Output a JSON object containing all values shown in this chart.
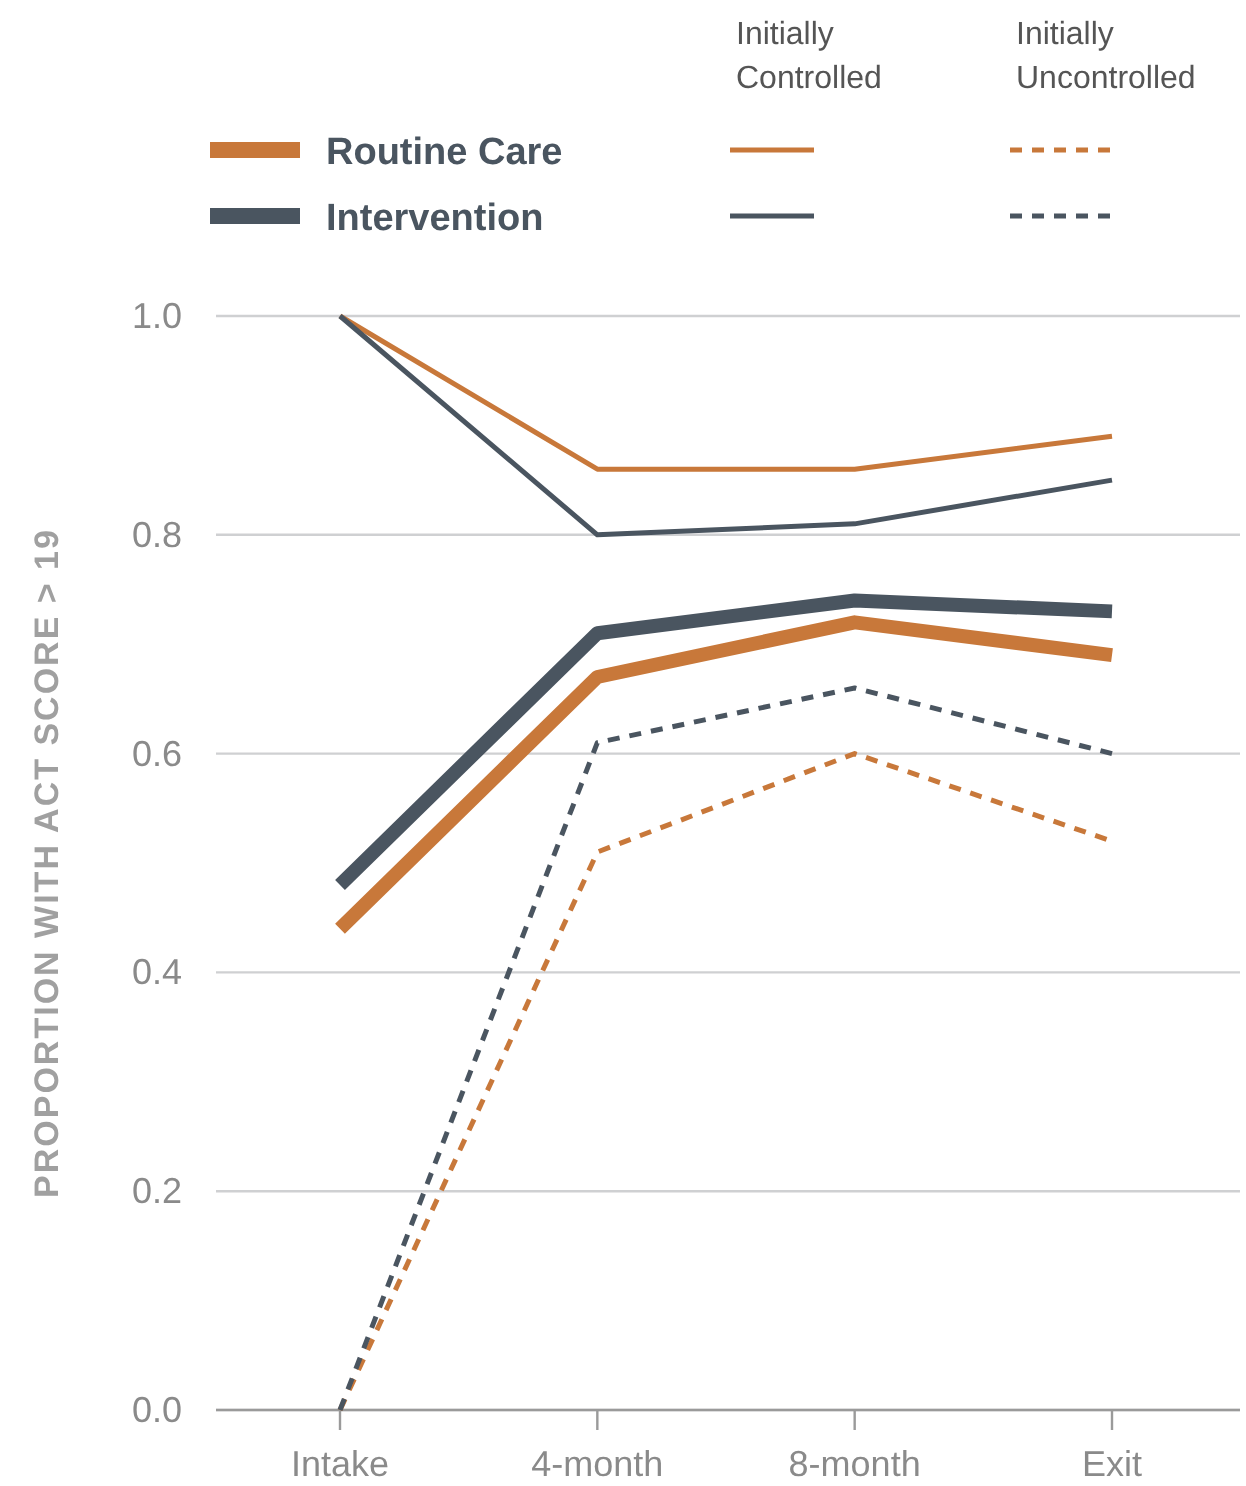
{
  "chart_data": {
    "type": "line",
    "ylabel": "PROPORTION WITH ACT SCORE > 19",
    "categories": [
      "Intake",
      "4-month",
      "8-month",
      "Exit"
    ],
    "ylim": [
      0,
      1
    ],
    "yticks": [
      {
        "value": 0,
        "label": "0.0"
      },
      {
        "value": 0.2,
        "label": "0.2"
      },
      {
        "value": 0.4,
        "label": "0.4"
      },
      {
        "value": 0.6,
        "label": "0.6"
      },
      {
        "value": 0.8,
        "label": "0.8"
      },
      {
        "value": 1,
        "label": "1.0"
      }
    ],
    "grid": "y",
    "legend": "top",
    "marker": "none",
    "annotations": [
      "Initially Controlled",
      "Initially Uncontrolled"
    ],
    "series": [
      {
        "name": "Routine Care",
        "color": "#c8783a",
        "values": [
          0.44,
          0.67,
          0.72,
          0.69
        ]
      },
      {
        "name": "Intervention",
        "color": "#4a5560",
        "values": [
          0.48,
          0.71,
          0.74,
          0.73
        ]
      },
      {
        "color": "#c8783a",
        "line_style": "solid",
        "values": [
          1.0,
          0.86,
          0.86,
          0.89
        ]
      },
      {
        "color": "#4a5560",
        "line_style": "solid",
        "values": [
          1.0,
          0.8,
          0.81,
          0.85
        ]
      },
      {
        "color": "#c8783a",
        "line_style": "dashed",
        "values": [
          0.0,
          0.51,
          0.6,
          0.52
        ]
      },
      {
        "color": "#4a5560",
        "line_style": "dashed",
        "values": [
          0.0,
          0.61,
          0.66,
          0.6
        ]
      }
    ]
  }
}
